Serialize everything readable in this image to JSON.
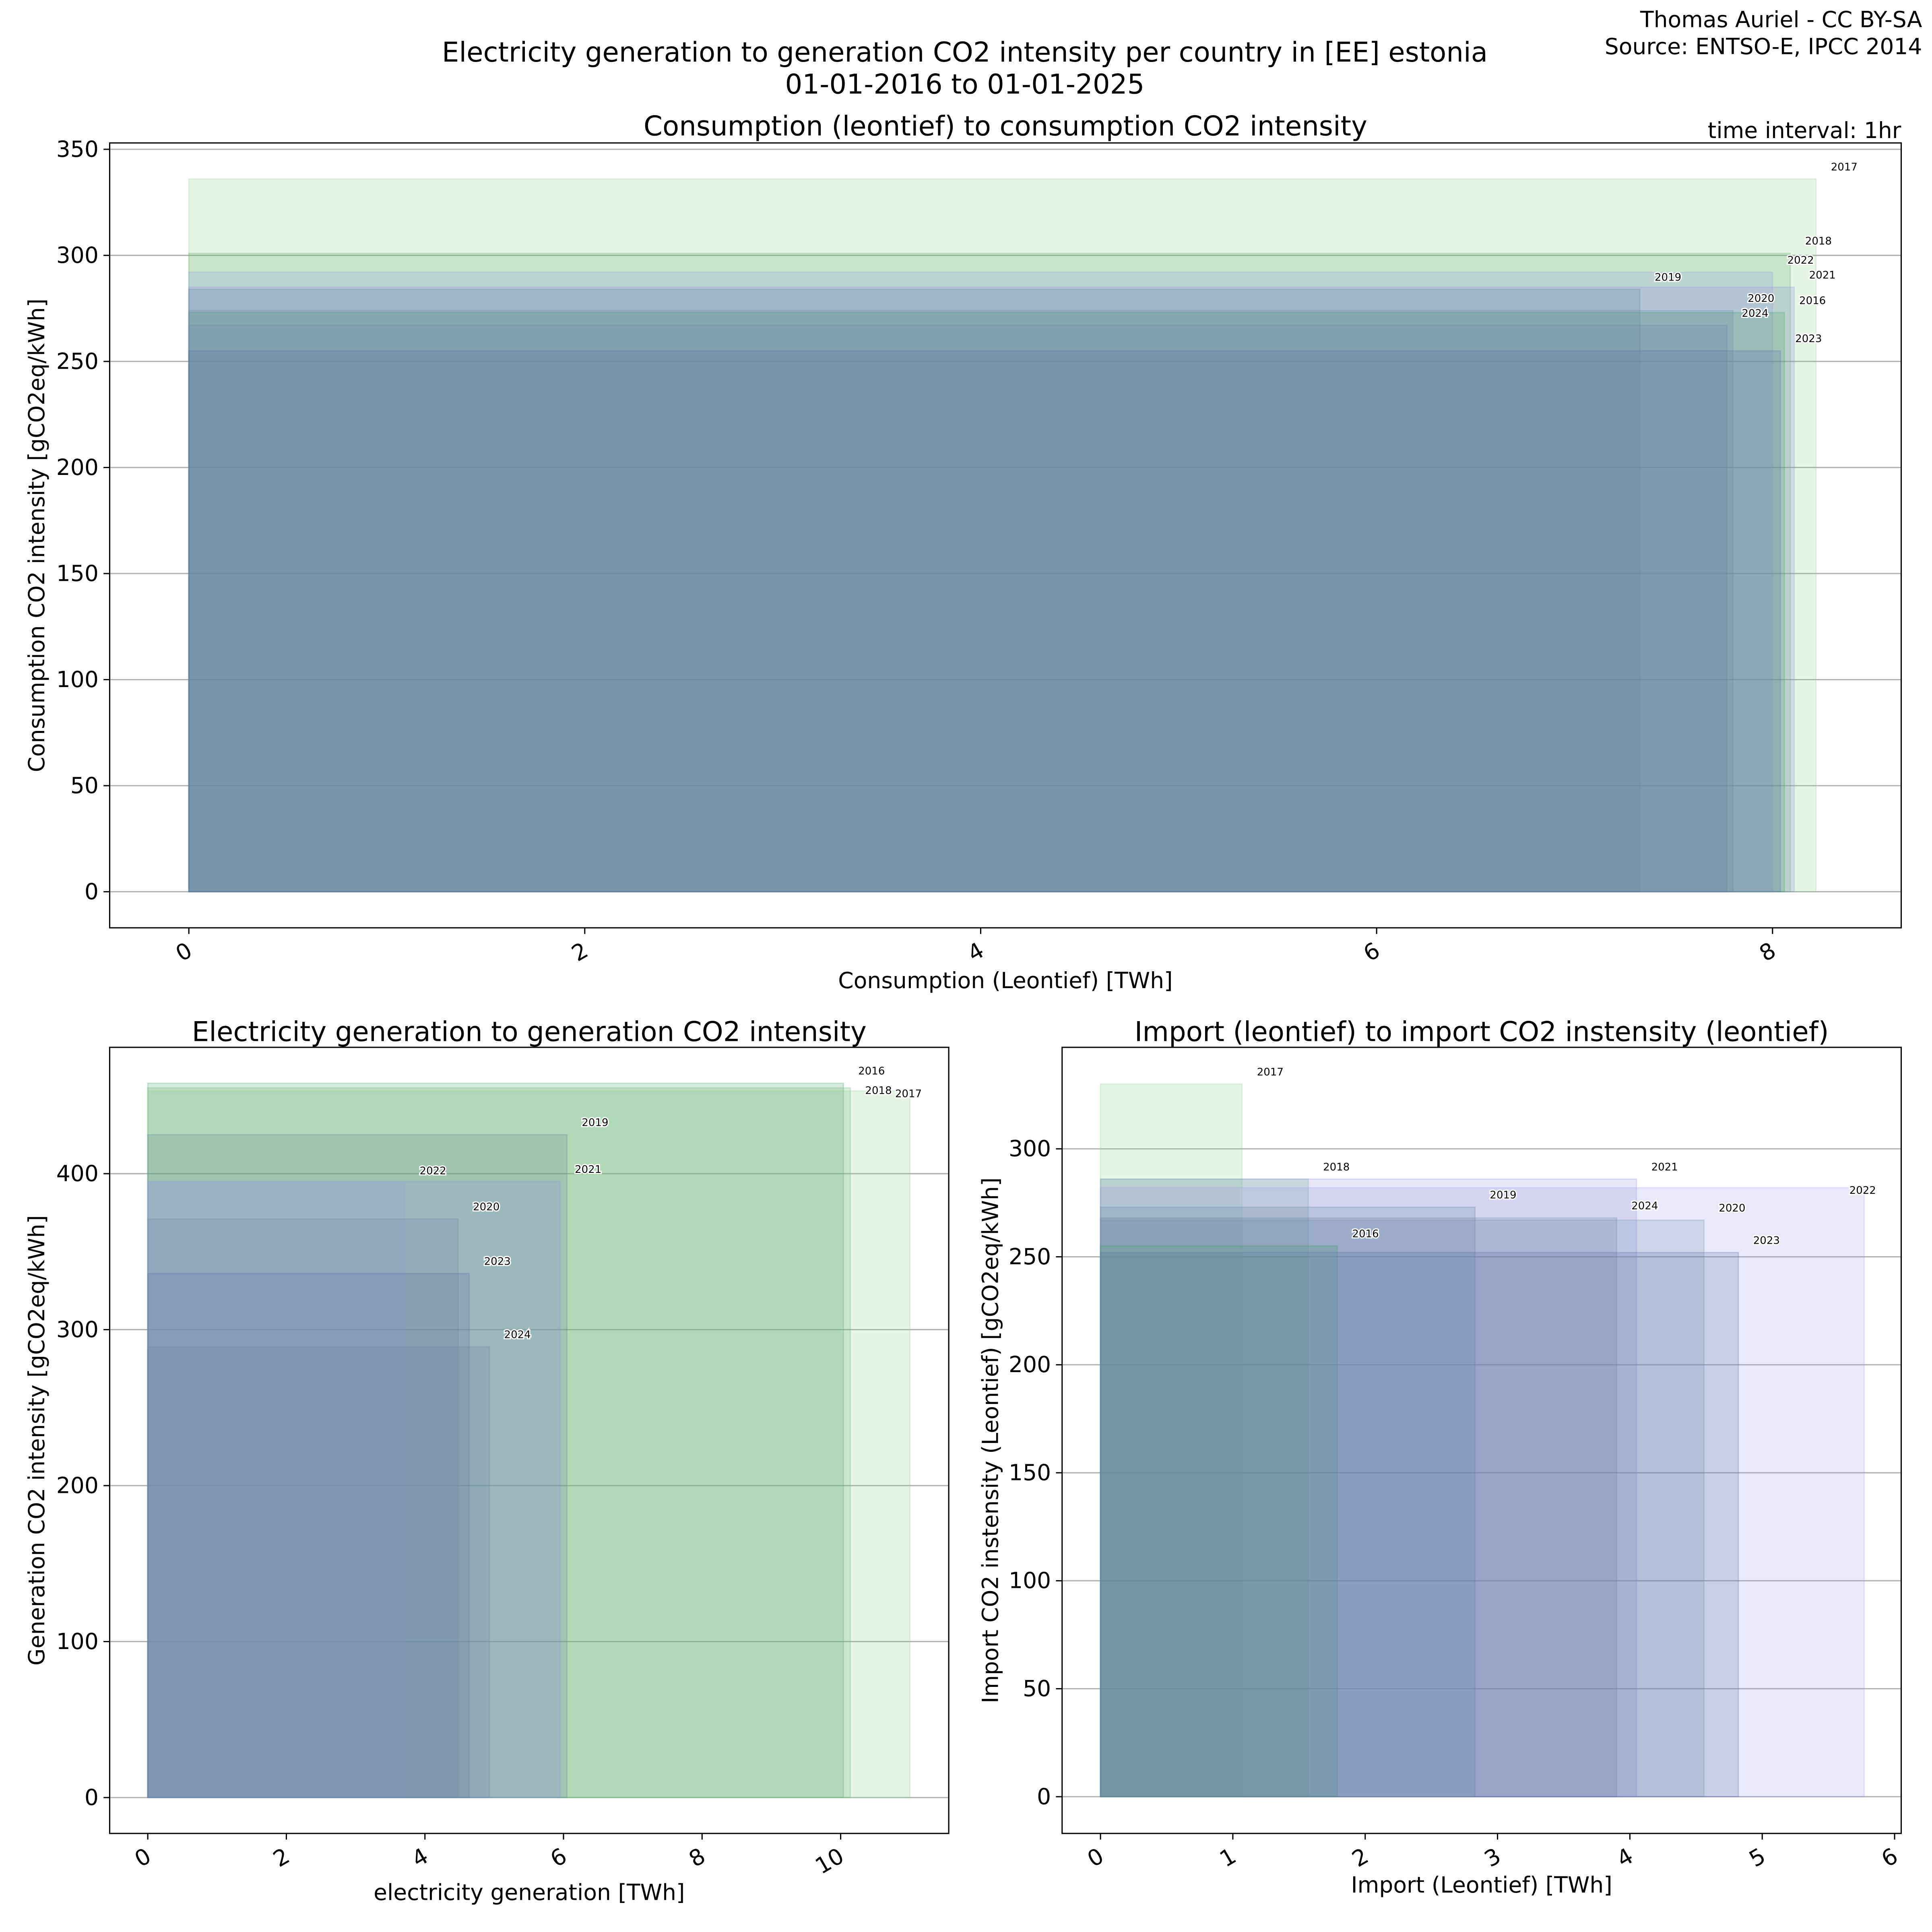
{
  "header": {
    "title_line1": "Electricity generation to generation CO2 intensity per country in [EE] estonia",
    "title_line2": "01-01-2016 to 01-01-2025",
    "credit_line1": "Thomas Auriel - CC BY-SA",
    "credit_line2": "Source: ENTSO-E, IPCC 2014",
    "time_interval": "time interval: 1hr"
  },
  "year_colors": {
    "2016": "#3f9f5f",
    "2017": "#8fcf8f",
    "2018": "#5fb06f",
    "2019": "#5f7fa0",
    "2020": "#6f8fa8",
    "2021": "#8f8fdc",
    "2022": "#9a9ae6",
    "2023": "#5a6fa8",
    "2024": "#6a82a6"
  },
  "chart_data": [
    {
      "type": "bar",
      "title": "Consumption (leontief) to consumption CO2 intensity",
      "xlabel": "Consumption (Leontief) [TWh]",
      "ylabel": "Consumption CO2 intensity [gCO2eq/kWh]",
      "xlim": [
        -0.4,
        8.65
      ],
      "ylim": [
        -17,
        353
      ],
      "xticks": [
        0,
        2,
        4,
        6,
        8
      ],
      "yticks": [
        0,
        50,
        100,
        150,
        200,
        250,
        300,
        350
      ],
      "grid": true,
      "series": [
        {
          "name": "2017",
          "x": 8.22,
          "y": 336
        },
        {
          "name": "2018",
          "x": 8.09,
          "y": 301
        },
        {
          "name": "2022",
          "x": 8.0,
          "y": 292
        },
        {
          "name": "2021",
          "x": 8.11,
          "y": 285
        },
        {
          "name": "2019",
          "x": 7.33,
          "y": 284
        },
        {
          "name": "2016",
          "x": 8.06,
          "y": 273
        },
        {
          "name": "2020",
          "x": 7.8,
          "y": 274
        },
        {
          "name": "2024",
          "x": 7.77,
          "y": 267
        },
        {
          "name": "2023",
          "x": 8.04,
          "y": 255
        }
      ]
    },
    {
      "type": "bar",
      "title": "Electricity generation to generation CO2 intensity",
      "xlabel": "electricity generation [TWh]",
      "ylabel": "Generation CO2 intensity [gCO2eq/kWh]",
      "xlim": [
        -0.55,
        11.56
      ],
      "ylim": [
        -23,
        481
      ],
      "xticks": [
        0,
        2,
        4,
        6,
        8,
        10
      ],
      "yticks": [
        0,
        100,
        200,
        300,
        400
      ],
      "grid": true,
      "series": [
        {
          "name": "2016",
          "x": 10.04,
          "y": 458
        },
        {
          "name": "2018",
          "x": 10.14,
          "y": 455
        },
        {
          "name": "2017",
          "x": 11.0,
          "y": 453
        },
        {
          "name": "2019",
          "x": 6.05,
          "y": 425
        },
        {
          "name": "2021",
          "x": 5.95,
          "y": 395
        },
        {
          "name": "2022",
          "x": 3.71,
          "y": 394
        },
        {
          "name": "2020",
          "x": 4.48,
          "y": 371
        },
        {
          "name": "2023",
          "x": 4.64,
          "y": 336
        },
        {
          "name": "2024",
          "x": 4.93,
          "y": 289
        }
      ]
    },
    {
      "type": "bar",
      "title": "Import (leontief) to import CO2 instensity (leontief)",
      "xlabel": "Import (Leontief) [TWh]",
      "ylabel": "Import CO2 instensity (Leontief) [gCO2eq/kWh]",
      "xlim": [
        -0.29,
        6.05
      ],
      "ylim": [
        -17,
        347
      ],
      "xticks": [
        0,
        1,
        2,
        3,
        4,
        5,
        6
      ],
      "yticks": [
        0,
        50,
        100,
        150,
        200,
        250,
        300
      ],
      "grid": true,
      "series": [
        {
          "name": "2017",
          "x": 1.07,
          "y": 330
        },
        {
          "name": "2018",
          "x": 1.57,
          "y": 286
        },
        {
          "name": "2021",
          "x": 4.05,
          "y": 286
        },
        {
          "name": "2022",
          "x": 5.77,
          "y": 282
        },
        {
          "name": "2019",
          "x": 2.83,
          "y": 273
        },
        {
          "name": "2024",
          "x": 3.9,
          "y": 268
        },
        {
          "name": "2020",
          "x": 4.56,
          "y": 267
        },
        {
          "name": "2016",
          "x": 1.79,
          "y": 255
        },
        {
          "name": "2023",
          "x": 4.82,
          "y": 252
        }
      ]
    }
  ]
}
